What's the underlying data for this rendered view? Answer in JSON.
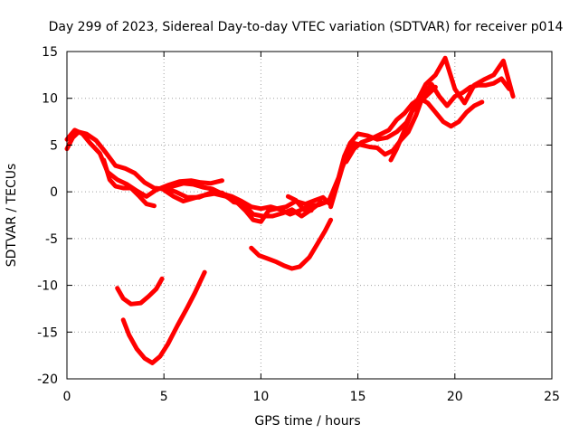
{
  "chart_data": {
    "type": "line",
    "title": "Day 299 of 2023, Sidereal Day-to-day VTEC variation (SDTVAR) for receiver p014",
    "xlabel": "GPS time / hours",
    "ylabel": "SDTVAR / TECUs",
    "xlim": [
      0,
      25
    ],
    "ylim": [
      -20,
      15
    ],
    "xticks": [
      0,
      5,
      10,
      15,
      20,
      25
    ],
    "yticks": [
      -20,
      -15,
      -10,
      -5,
      0,
      5,
      10,
      15
    ],
    "grid": true,
    "legend": "none",
    "color": "#ff0000",
    "series": [
      {
        "values": [
          [
            0.0,
            4.6
          ],
          [
            0.3,
            5.8
          ],
          [
            0.6,
            6.4
          ],
          [
            1.0,
            6.2
          ],
          [
            1.5,
            5.5
          ],
          [
            2.0,
            4.2
          ],
          [
            2.5,
            2.8
          ],
          [
            3.0,
            2.5
          ],
          [
            3.5,
            2.0
          ],
          [
            4.0,
            1.0
          ],
          [
            4.5,
            0.4
          ],
          [
            5.0,
            0.3
          ],
          [
            5.5,
            0.6
          ],
          [
            6.0,
            0.9
          ],
          [
            6.5,
            0.8
          ],
          [
            7.0,
            0.5
          ],
          [
            7.5,
            0.3
          ],
          [
            8.0,
            -0.2
          ],
          [
            8.5,
            -0.5
          ],
          [
            9.0,
            -1.0
          ],
          [
            9.5,
            -1.6
          ],
          [
            10.0,
            -1.8
          ],
          [
            10.5,
            -1.6
          ],
          [
            11.0,
            -1.9
          ],
          [
            11.5,
            -2.4
          ],
          [
            12.0,
            -2.0
          ],
          [
            12.5,
            -1.5
          ],
          [
            13.0,
            -1.4
          ],
          [
            13.5,
            -1.0
          ],
          [
            14.0,
            1.5
          ],
          [
            14.3,
            3.8
          ],
          [
            14.6,
            5.2
          ],
          [
            15.0,
            6.2
          ],
          [
            15.5,
            6.0
          ],
          [
            16.0,
            5.6
          ],
          [
            16.5,
            5.8
          ],
          [
            17.0,
            6.4
          ],
          [
            17.5,
            7.4
          ],
          [
            18.0,
            9.5
          ],
          [
            18.5,
            11.5
          ],
          [
            19.0,
            12.5
          ],
          [
            19.5,
            14.3
          ],
          [
            20.0,
            11.0
          ],
          [
            20.5,
            9.5
          ],
          [
            21.0,
            11.4
          ],
          [
            21.5,
            12.0
          ],
          [
            22.0,
            12.5
          ],
          [
            22.5,
            14.0
          ],
          [
            23.0,
            10.2
          ]
        ]
      },
      {
        "values": [
          [
            0.0,
            5.6
          ],
          [
            0.4,
            6.6
          ],
          [
            0.8,
            6.2
          ],
          [
            1.2,
            5.2
          ],
          [
            1.7,
            4.1
          ],
          [
            2.1,
            2.1
          ],
          [
            2.6,
            1.3
          ],
          [
            3.1,
            0.8
          ],
          [
            3.6,
            0.1
          ],
          [
            4.1,
            -0.5
          ],
          [
            4.6,
            0.2
          ],
          [
            5.2,
            0.7
          ],
          [
            5.8,
            1.1
          ],
          [
            6.4,
            1.2
          ],
          [
            6.9,
            1.0
          ],
          [
            7.4,
            0.9
          ],
          [
            8.0,
            1.2
          ]
        ]
      },
      {
        "values": [
          [
            1.9,
            3.4
          ],
          [
            2.2,
            1.3
          ],
          [
            2.5,
            0.6
          ],
          [
            2.9,
            0.4
          ],
          [
            3.3,
            0.4
          ],
          [
            3.7,
            -0.4
          ],
          [
            4.1,
            -1.3
          ],
          [
            4.5,
            -1.5
          ]
        ]
      },
      {
        "values": [
          [
            5.0,
            0.2
          ],
          [
            5.5,
            -0.5
          ],
          [
            6.0,
            -1.0
          ],
          [
            6.5,
            -0.7
          ],
          [
            7.0,
            -0.4
          ],
          [
            7.6,
            -0.2
          ],
          [
            8.2,
            -0.5
          ],
          [
            8.8,
            -1.2
          ],
          [
            9.2,
            -2.0
          ],
          [
            9.6,
            -3.0
          ],
          [
            10.0,
            -3.2
          ],
          [
            10.4,
            -2.0
          ],
          [
            10.8,
            -1.8
          ],
          [
            11.3,
            -1.6
          ],
          [
            11.8,
            -1.0
          ],
          [
            12.3,
            -1.3
          ],
          [
            12.8,
            -0.9
          ],
          [
            13.2,
            -0.6
          ],
          [
            13.6,
            -1.4
          ]
        ]
      },
      {
        "values": [
          [
            5.0,
            0.4
          ],
          [
            5.6,
            0.0
          ],
          [
            6.2,
            -0.6
          ],
          [
            6.8,
            -0.6
          ],
          [
            7.4,
            -0.1
          ],
          [
            8.0,
            -0.1
          ],
          [
            8.6,
            -1.1
          ],
          [
            9.1,
            -1.3
          ],
          [
            9.6,
            -2.4
          ],
          [
            10.1,
            -2.6
          ],
          [
            10.6,
            -2.6
          ],
          [
            11.1,
            -2.3
          ],
          [
            11.6,
            -1.9
          ],
          [
            12.1,
            -2.6
          ],
          [
            12.6,
            -1.9
          ],
          [
            13.1,
            -1.1
          ]
        ]
      },
      {
        "values": [
          [
            11.4,
            -0.5
          ],
          [
            11.8,
            -0.9
          ],
          [
            12.2,
            -1.9
          ],
          [
            12.6,
            -2.0
          ]
        ]
      },
      {
        "values": [
          [
            13.6,
            -1.6
          ],
          [
            13.9,
            0.5
          ],
          [
            14.2,
            2.6
          ],
          [
            14.5,
            4.2
          ],
          [
            14.8,
            5.2
          ],
          [
            15.2,
            5.0
          ],
          [
            15.6,
            4.8
          ],
          [
            16.0,
            4.7
          ],
          [
            16.4,
            4.0
          ],
          [
            16.8,
            4.4
          ],
          [
            17.2,
            5.5
          ],
          [
            17.6,
            6.4
          ],
          [
            18.0,
            8.2
          ],
          [
            18.4,
            10.5
          ],
          [
            18.8,
            11.5
          ],
          [
            19.2,
            10.2
          ],
          [
            19.6,
            9.2
          ],
          [
            20.0,
            10.2
          ],
          [
            20.4,
            10.6
          ],
          [
            20.8,
            11.2
          ],
          [
            21.2,
            11.4
          ],
          [
            21.6,
            11.4
          ],
          [
            22.0,
            11.6
          ],
          [
            22.4,
            12.1
          ],
          [
            22.8,
            11.0
          ]
        ]
      },
      {
        "values": [
          [
            14.4,
            3.2
          ],
          [
            14.8,
            4.6
          ],
          [
            15.2,
            5.3
          ],
          [
            15.6,
            5.6
          ],
          [
            16.1,
            6.1
          ],
          [
            16.6,
            6.6
          ],
          [
            17.0,
            7.7
          ],
          [
            17.4,
            8.4
          ],
          [
            17.8,
            9.4
          ],
          [
            18.2,
            10.0
          ],
          [
            18.6,
            9.5
          ],
          [
            19.0,
            8.5
          ],
          [
            19.4,
            7.5
          ],
          [
            19.8,
            7.0
          ],
          [
            20.2,
            7.5
          ],
          [
            20.6,
            8.5
          ],
          [
            21.0,
            9.2
          ],
          [
            21.4,
            9.6
          ]
        ]
      },
      {
        "values": [
          [
            16.7,
            3.4
          ],
          [
            17.0,
            4.6
          ],
          [
            17.4,
            6.6
          ],
          [
            17.8,
            8.6
          ],
          [
            18.2,
            9.6
          ],
          [
            18.6,
            10.4
          ],
          [
            19.0,
            11.2
          ]
        ]
      },
      {
        "values": [
          [
            2.6,
            -10.3
          ],
          [
            2.9,
            -11.4
          ],
          [
            3.3,
            -12.0
          ],
          [
            3.8,
            -11.9
          ],
          [
            4.2,
            -11.2
          ],
          [
            4.6,
            -10.4
          ],
          [
            4.9,
            -9.3
          ]
        ]
      },
      {
        "values": [
          [
            2.9,
            -13.7
          ],
          [
            3.2,
            -15.3
          ],
          [
            3.6,
            -16.8
          ],
          [
            4.0,
            -17.8
          ],
          [
            4.4,
            -18.3
          ],
          [
            4.8,
            -17.6
          ],
          [
            5.2,
            -16.3
          ],
          [
            5.7,
            -14.3
          ],
          [
            6.2,
            -12.4
          ],
          [
            6.6,
            -10.8
          ],
          [
            7.1,
            -8.6
          ]
        ]
      },
      {
        "values": [
          [
            9.5,
            -6.0
          ],
          [
            9.9,
            -6.8
          ],
          [
            10.3,
            -7.1
          ],
          [
            10.8,
            -7.5
          ],
          [
            11.2,
            -7.9
          ],
          [
            11.6,
            -8.2
          ],
          [
            12.0,
            -8.0
          ],
          [
            12.5,
            -7.0
          ],
          [
            12.9,
            -5.6
          ],
          [
            13.3,
            -4.2
          ],
          [
            13.6,
            -3.0
          ]
        ]
      }
    ]
  }
}
